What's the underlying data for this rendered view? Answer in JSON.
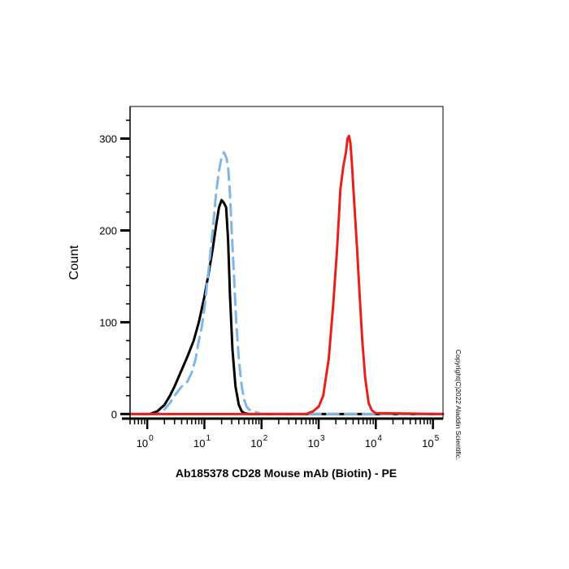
{
  "chart_data": {
    "type": "line",
    "title": "",
    "xlabel": "Ab185378 CD28 Mouse mAb (Biotin) - PE",
    "ylabel": "Count",
    "x_scale": "log",
    "xlim": [
      0.5,
      150000
    ],
    "ylim": [
      -5,
      335
    ],
    "y_ticks": [
      0,
      100,
      200,
      300
    ],
    "x_ticks": [
      {
        "value": 1,
        "base": "10",
        "exp": "0"
      },
      {
        "value": 10,
        "base": "10",
        "exp": "1"
      },
      {
        "value": 100,
        "base": "10",
        "exp": "2"
      },
      {
        "value": 1000,
        "base": "10",
        "exp": "3"
      },
      {
        "value": 10000,
        "base": "10",
        "exp": "4"
      },
      {
        "value": 100000,
        "base": "10",
        "exp": "5"
      }
    ],
    "grid": false,
    "legend": "none",
    "copyright": "Copyright(C)2022 Aladdin Scientific.",
    "series": [
      {
        "color": "#000000",
        "style": "solid",
        "x": [
          0.5,
          1.1,
          1.5,
          2.0,
          2.5,
          3.0,
          4.0,
          5.0,
          6.5,
          8.0,
          10,
          12,
          14,
          16,
          18,
          20,
          22,
          24,
          26,
          28,
          31,
          35,
          40,
          45,
          50,
          60,
          80,
          100,
          150000
        ],
        "y": [
          0,
          0,
          3,
          10,
          20,
          30,
          48,
          62,
          80,
          100,
          128,
          155,
          180,
          205,
          225,
          233,
          230,
          225,
          190,
          130,
          70,
          30,
          10,
          3,
          1,
          0,
          0,
          0,
          0
        ]
      },
      {
        "color": "#7fb6e6",
        "style": "dashed",
        "x": [
          0.5,
          1.5,
          2.0,
          2.5,
          3.0,
          4.0,
          5.0,
          6.0,
          7.0,
          8.0,
          9.0,
          10,
          12,
          14,
          16,
          18,
          20,
          22,
          24,
          26,
          28,
          30,
          33,
          36,
          40,
          45,
          50,
          55,
          60,
          80,
          100,
          150000
        ],
        "y": [
          0,
          0,
          5,
          12,
          20,
          30,
          35,
          45,
          60,
          80,
          95,
          115,
          160,
          200,
          240,
          265,
          280,
          285,
          280,
          270,
          240,
          200,
          150,
          100,
          60,
          30,
          15,
          8,
          5,
          2,
          0,
          0
        ]
      },
      {
        "color": "#e8201c",
        "style": "solid",
        "x": [
          0.5,
          600,
          800,
          1000,
          1200,
          1500,
          1800,
          2100,
          2400,
          2700,
          3000,
          3200,
          3400,
          3600,
          3800,
          4200,
          4700,
          5200,
          5800,
          6500,
          7500,
          8500,
          10000,
          150000
        ],
        "y": [
          0,
          0,
          3,
          8,
          20,
          60,
          120,
          180,
          245,
          270,
          285,
          300,
          303,
          295,
          275,
          230,
          180,
          130,
          80,
          40,
          12,
          4,
          1,
          0
        ]
      }
    ]
  }
}
